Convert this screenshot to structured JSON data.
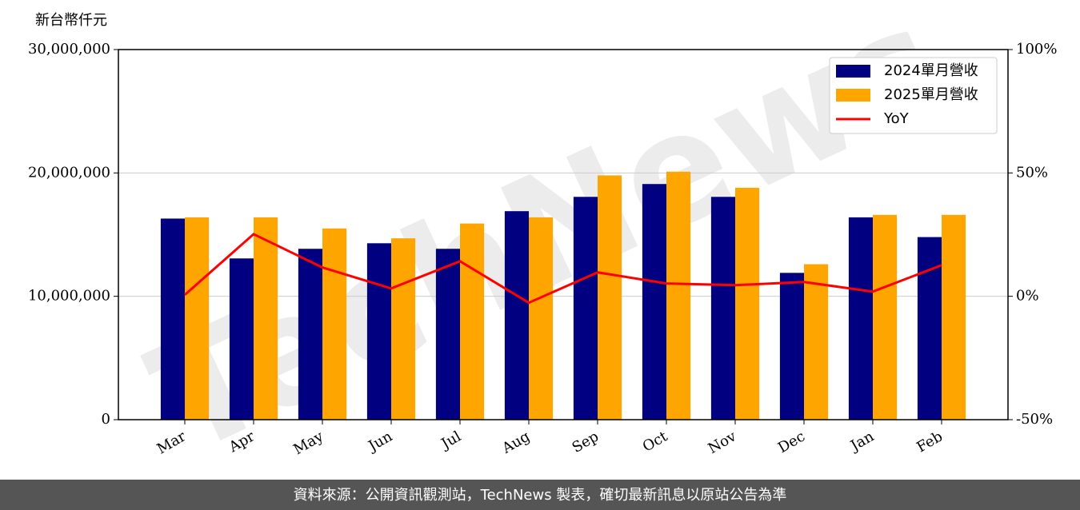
{
  "chart_data": {
    "type": "bar",
    "y_label": "新台幣仟元",
    "watermark": "TechNews",
    "source": "資料來源：公開資訊觀測站，TechNews 製表，確切最新訊息以原站公告為準",
    "categories": [
      "Mar",
      "Apr",
      "May",
      "Jun",
      "Jul",
      "Aug",
      "Sep",
      "Oct",
      "Nov",
      "Dec",
      "Jan",
      "Feb"
    ],
    "series": [
      {
        "name": "2024單月營收",
        "color": "#000080",
        "values": [
          16300000,
          13070000,
          13850000,
          14300000,
          13850000,
          16900000,
          18060000,
          19100000,
          18060000,
          11900000,
          16400000,
          14800000
        ]
      },
      {
        "name": "2025單月營收",
        "color": "#ffa500",
        "values": [
          16400000,
          16400000,
          15500000,
          14700000,
          15900000,
          16400000,
          19800000,
          20100000,
          18800000,
          12600000,
          16600000,
          16600000
        ]
      },
      {
        "name": "YoY",
        "color": "#ff0000",
        "type": "line",
        "axis": "y2",
        "values": [
          0.6,
          25.2,
          11.7,
          3.2,
          14.2,
          -2.6,
          9.7,
          5.2,
          4.5,
          5.8,
          1.9,
          12.6
        ]
      }
    ],
    "ylim": [
      0,
      30000000
    ],
    "yticks": [
      0,
      {
        "value": 10000000,
        "label": "10,000,000"
      },
      {
        "value": 20000000,
        "label": "20,000,000"
      },
      {
        "value": 30000000,
        "label": "30,000,000"
      }
    ],
    "y2lim": [
      -50,
      100
    ],
    "y2ticks": [
      {
        "value": -50,
        "label": "-50%"
      },
      {
        "value": 0,
        "label": "0%"
      },
      {
        "value": 50,
        "label": "50%"
      },
      {
        "value": 100,
        "label": "100%"
      }
    ],
    "grid": true,
    "legend": "upper right"
  }
}
